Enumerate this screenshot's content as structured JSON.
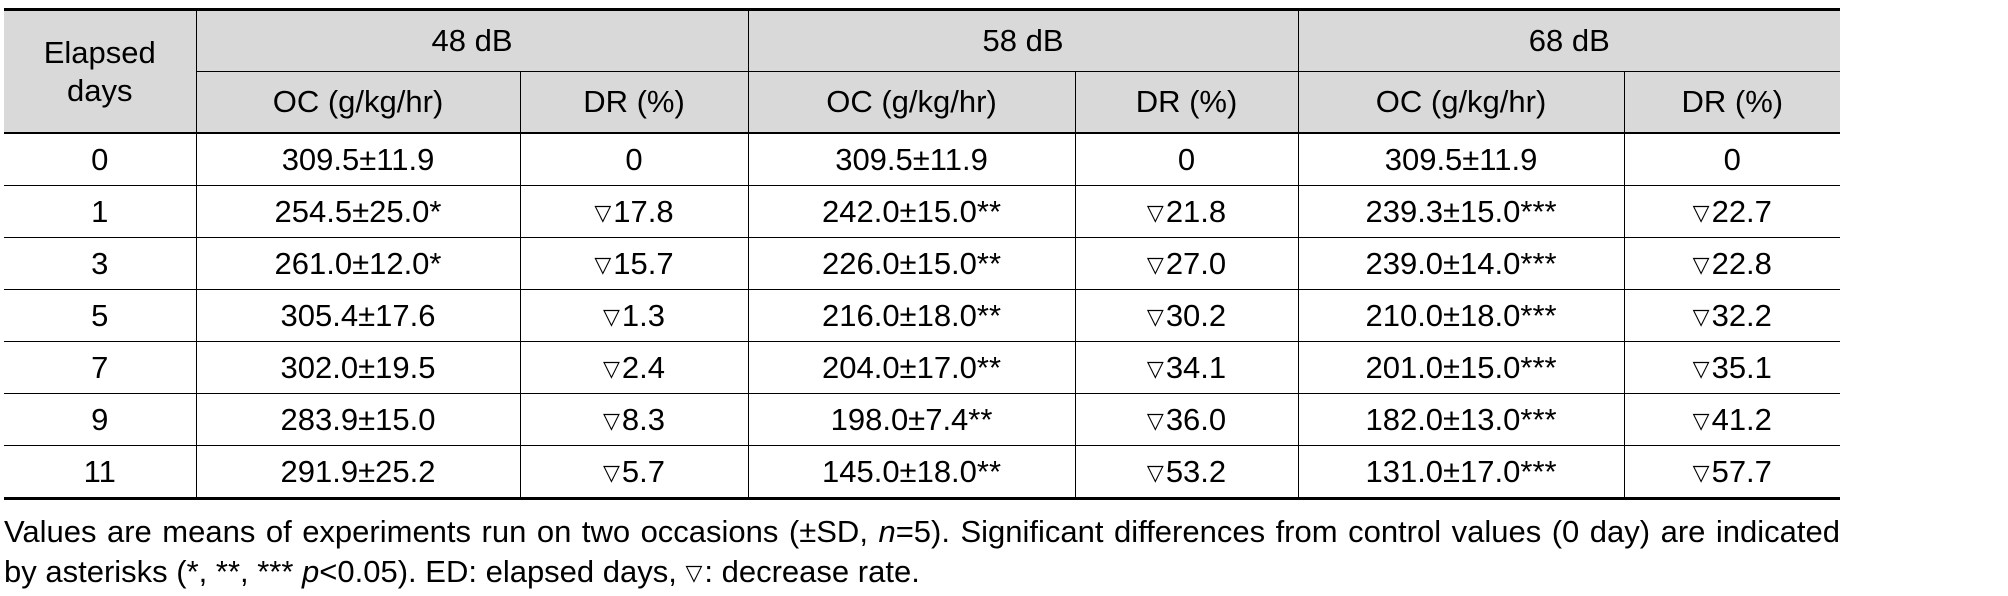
{
  "table": {
    "header": {
      "row_label": "Elapsed days",
      "groups": [
        "48 dB",
        "58 dB",
        "68 dB"
      ],
      "sub": [
        "OC (g/kg/hr)",
        "DR (%)"
      ]
    },
    "rows": [
      {
        "day": "0",
        "c": [
          "309.5±11.9",
          "0",
          "309.5±11.9",
          "0",
          "309.5±11.9",
          "0"
        ]
      },
      {
        "day": "1",
        "c": [
          "254.5±25.0*",
          "17.8",
          "242.0±15.0**",
          "21.8",
          "239.3±15.0***",
          "22.7"
        ]
      },
      {
        "day": "3",
        "c": [
          "261.0±12.0*",
          "15.7",
          "226.0±15.0**",
          "27.0",
          "239.0±14.0***",
          "22.8"
        ]
      },
      {
        "day": "5",
        "c": [
          "305.4±17.6",
          "1.3",
          "216.0±18.0**",
          "30.2",
          "210.0±18.0***",
          "32.2"
        ]
      },
      {
        "day": "7",
        "c": [
          "302.0±19.5",
          "2.4",
          "204.0±17.0**",
          "34.1",
          "201.0±15.0***",
          "35.1"
        ]
      },
      {
        "day": "9",
        "c": [
          "283.9±15.0",
          "8.3",
          "198.0±7.4**",
          "36.0",
          "182.0±13.0***",
          "41.2"
        ]
      },
      {
        "day": "11",
        "c": [
          "291.9±25.2",
          "5.7",
          "145.0±18.0**",
          "53.2",
          "131.0±17.0***",
          "57.7"
        ]
      }
    ],
    "decrease_symbol": "▽"
  },
  "note": {
    "p1": "Values are means of experiments run on two occasions (±SD, ",
    "n_italic": "n",
    "p2": "=5). Significant differences from control values (0 day) are indicated by asterisks (*, **, *** ",
    "p_italic": "p",
    "p3": "<0.05). ED: elapsed days, ",
    "symbol": "▽",
    "p4": ": decrease rate."
  }
}
